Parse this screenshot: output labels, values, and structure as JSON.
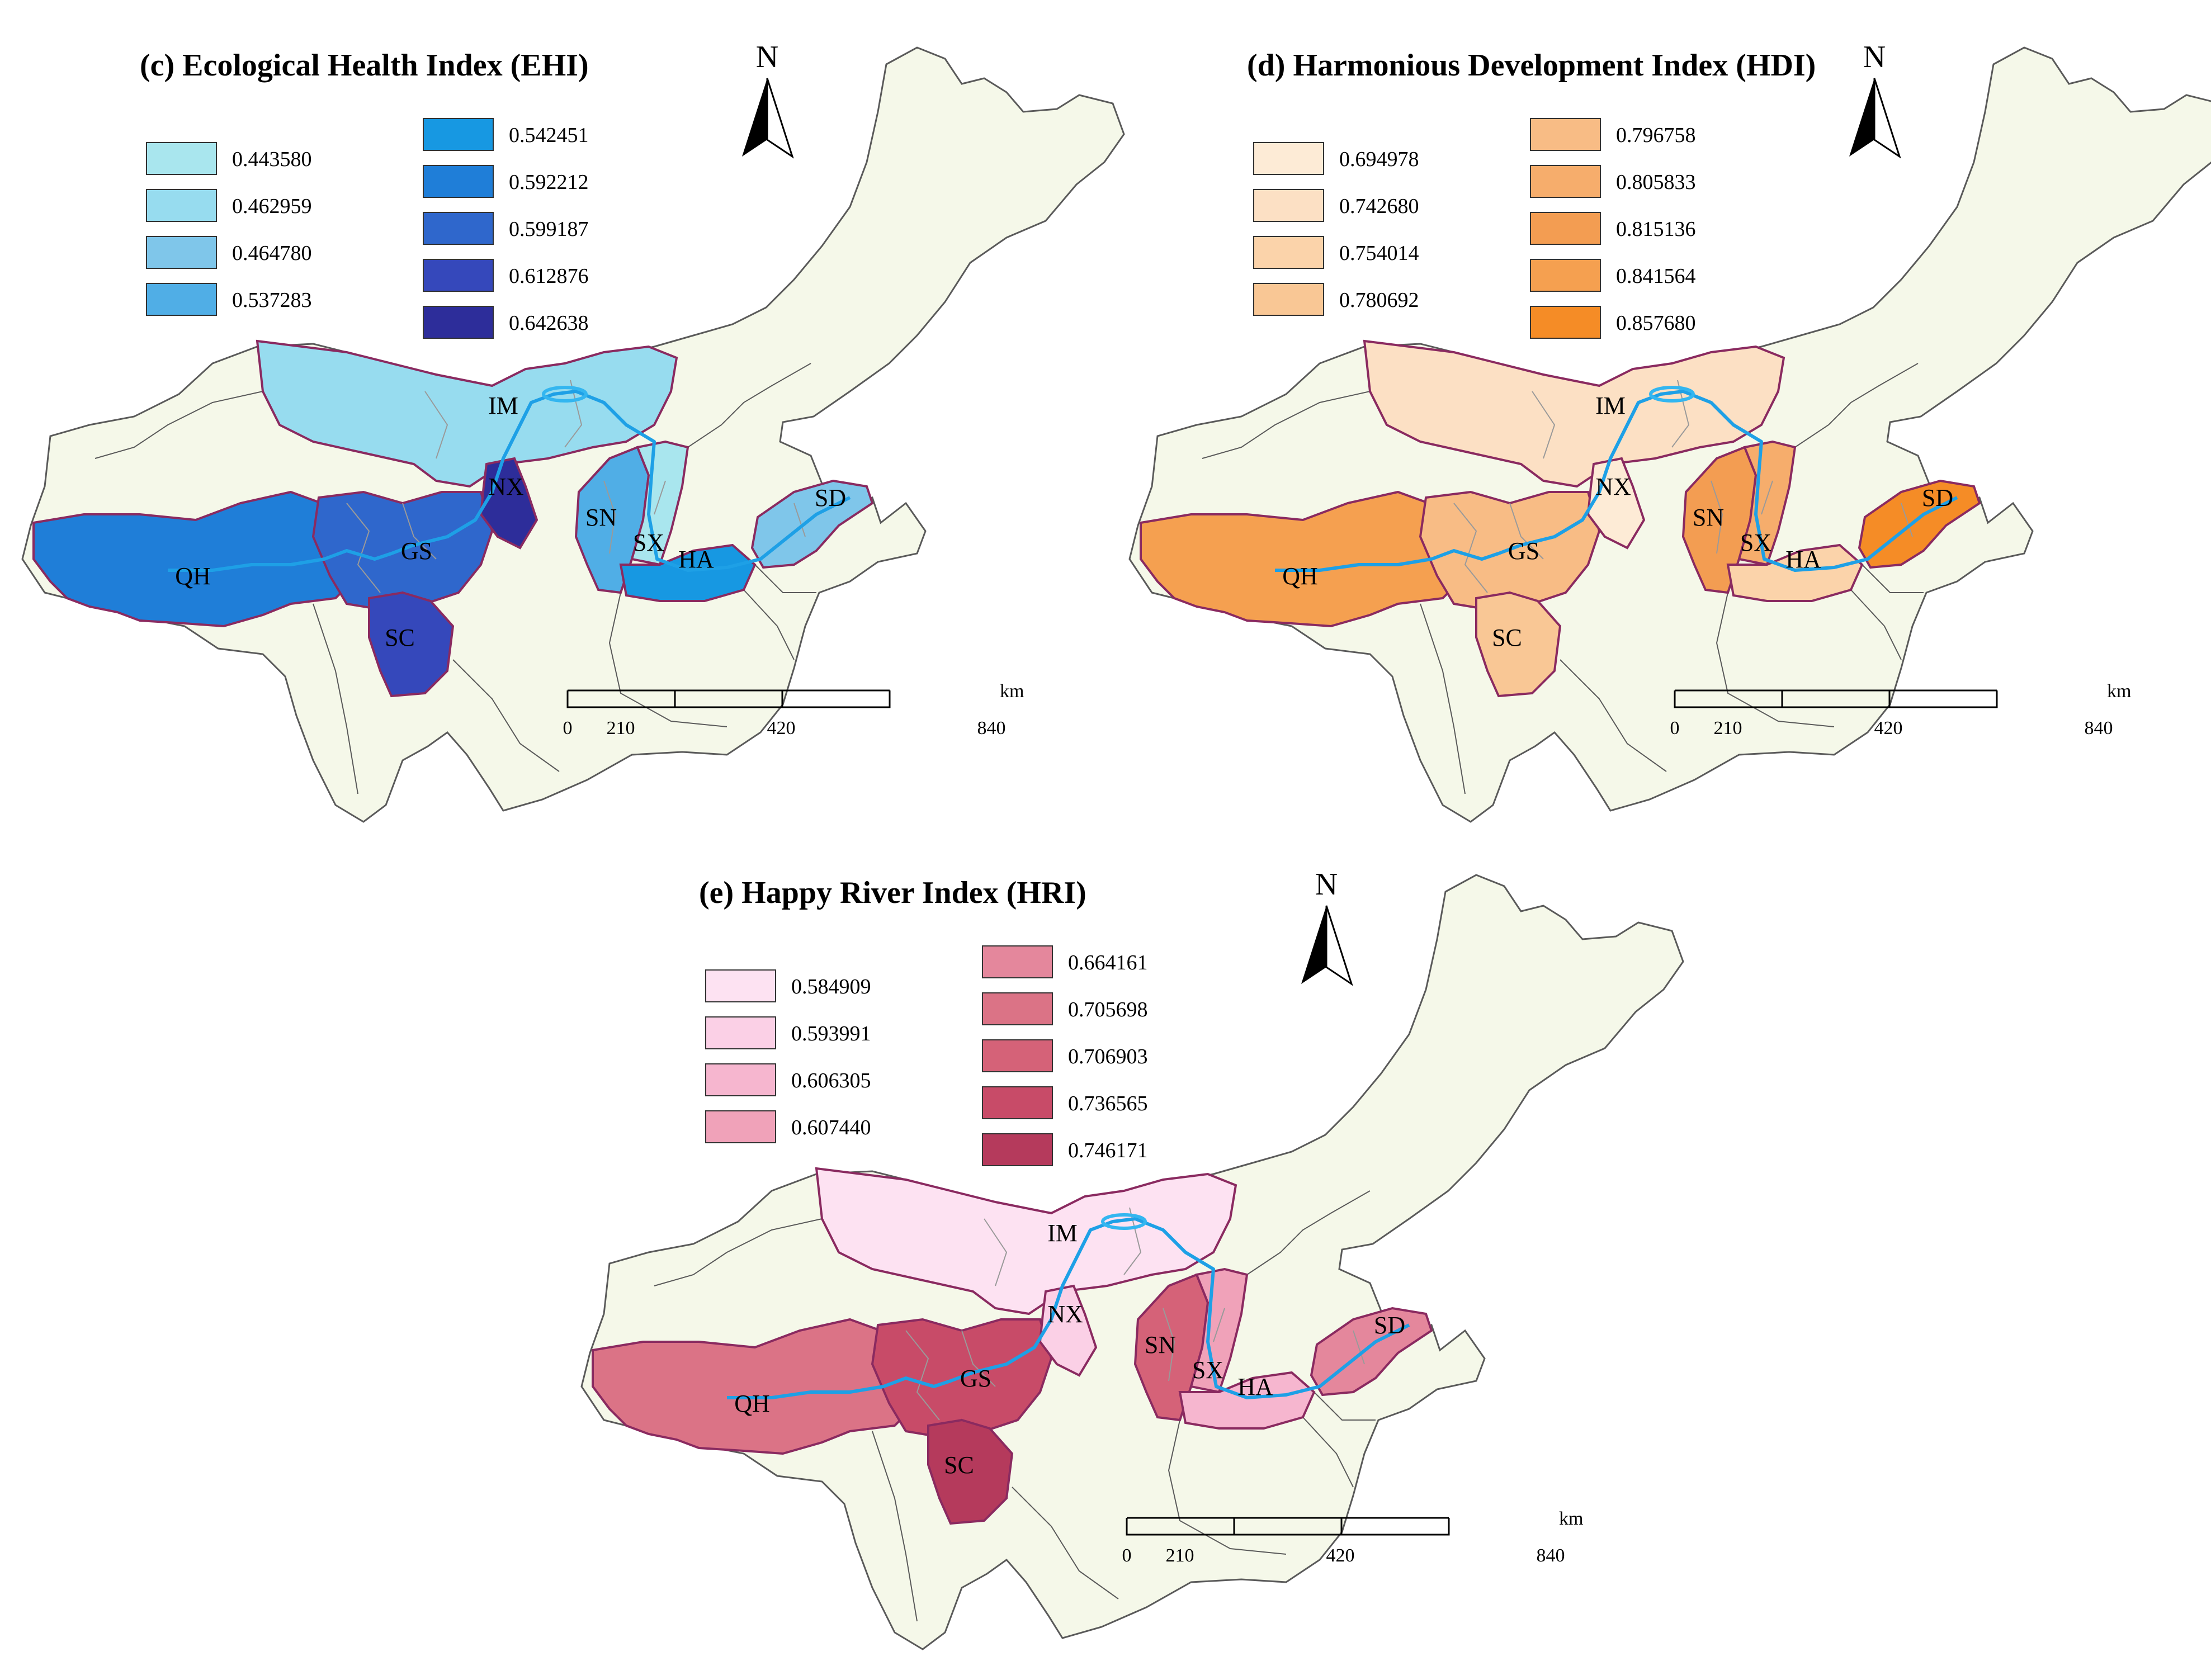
{
  "colors": {
    "background": "#ffffff",
    "base_land": "#f5f8e9",
    "base_border": "#5a5a5a",
    "basin_border": "#8a2a60",
    "inner_border": "#9a9a9a",
    "river": "#1ea0e6",
    "lake": "#33b6f0"
  },
  "panels": [
    {
      "id": "c",
      "title": "(c) Ecological Health Index (EHI)",
      "legend_left": [
        {
          "label": "0.443580",
          "color": "#a9e6ee"
        },
        {
          "label": "0.462959",
          "color": "#97dcef"
        },
        {
          "label": "0.464780",
          "color": "#7fc6ea"
        },
        {
          "label": "0.537283",
          "color": "#50aee6"
        }
      ],
      "legend_right": [
        {
          "label": "0.542451",
          "color": "#1798e2"
        },
        {
          "label": "0.592212",
          "color": "#1f7ed8"
        },
        {
          "label": "0.599187",
          "color": "#2f67cc"
        },
        {
          "label": "0.612876",
          "color": "#3548bb"
        },
        {
          "label": "0.642638",
          "color": "#2d2d9a"
        }
      ],
      "provinces": [
        {
          "code": "IM",
          "color": "#97dcef"
        },
        {
          "code": "NX",
          "color": "#2d2d9a"
        },
        {
          "code": "GS",
          "color": "#2f67cc"
        },
        {
          "code": "QH",
          "color": "#1f7ed8"
        },
        {
          "code": "SC",
          "color": "#3548bb"
        },
        {
          "code": "SN",
          "color": "#50aee6"
        },
        {
          "code": "SX",
          "color": "#a9e6ee"
        },
        {
          "code": "HA",
          "color": "#1798e2"
        },
        {
          "code": "SD",
          "color": "#7fc6ea"
        }
      ]
    },
    {
      "id": "d",
      "title": "(d) Harmonious Development Index (HDI)",
      "legend_left": [
        {
          "label": "0.694978",
          "color": "#fdebd6"
        },
        {
          "label": "0.742680",
          "color": "#fce0c4"
        },
        {
          "label": "0.754014",
          "color": "#fbd3aa"
        },
        {
          "label": "0.780692",
          "color": "#f9c795"
        }
      ],
      "legend_right": [
        {
          "label": "0.796758",
          "color": "#f8bc85"
        },
        {
          "label": "0.805833",
          "color": "#f6ad6c"
        },
        {
          "label": "0.815136",
          "color": "#f39d52"
        },
        {
          "label": "0.841564",
          "color": "#f5a050"
        },
        {
          "label": "0.857680",
          "color": "#f58c26"
        }
      ],
      "provinces": [
        {
          "code": "IM",
          "color": "#fce0c4"
        },
        {
          "code": "NX",
          "color": "#fdebd6"
        },
        {
          "code": "GS",
          "color": "#f8bc85"
        },
        {
          "code": "QH",
          "color": "#f5a050"
        },
        {
          "code": "SC",
          "color": "#f9c795"
        },
        {
          "code": "SN",
          "color": "#f39d52"
        },
        {
          "code": "SX",
          "color": "#f6ad6c"
        },
        {
          "code": "HA",
          "color": "#fbd3aa"
        },
        {
          "code": "SD",
          "color": "#f58c26"
        }
      ]
    },
    {
      "id": "e",
      "title": "(e) Happy River Index (HRI)",
      "legend_left": [
        {
          "label": "0.584909",
          "color": "#fde2f2"
        },
        {
          "label": "0.593991",
          "color": "#fbd0e6"
        },
        {
          "label": "0.606305",
          "color": "#f6b6cf"
        },
        {
          "label": "0.607440",
          "color": "#f0a2b9"
        }
      ],
      "legend_right": [
        {
          "label": "0.664161",
          "color": "#e4879c"
        },
        {
          "label": "0.705698",
          "color": "#db7386"
        },
        {
          "label": "0.706903",
          "color": "#d56278"
        },
        {
          "label": "0.736565",
          "color": "#c84b68"
        },
        {
          "label": "0.746171",
          "color": "#b53a5c"
        }
      ],
      "provinces": [
        {
          "code": "IM",
          "color": "#fde2f2"
        },
        {
          "code": "NX",
          "color": "#fbd0e6"
        },
        {
          "code": "GS",
          "color": "#c84b68"
        },
        {
          "code": "QH",
          "color": "#db7386"
        },
        {
          "code": "SC",
          "color": "#b53a5c"
        },
        {
          "code": "SN",
          "color": "#d56278"
        },
        {
          "code": "SX",
          "color": "#f0a2b9"
        },
        {
          "code": "HA",
          "color": "#f6b6cf"
        },
        {
          "code": "SD",
          "color": "#e4879c"
        }
      ]
    }
  ],
  "north_label": "N",
  "scale_bar": {
    "labels": [
      "0",
      "210",
      "420",
      "840"
    ],
    "unit": "km"
  }
}
